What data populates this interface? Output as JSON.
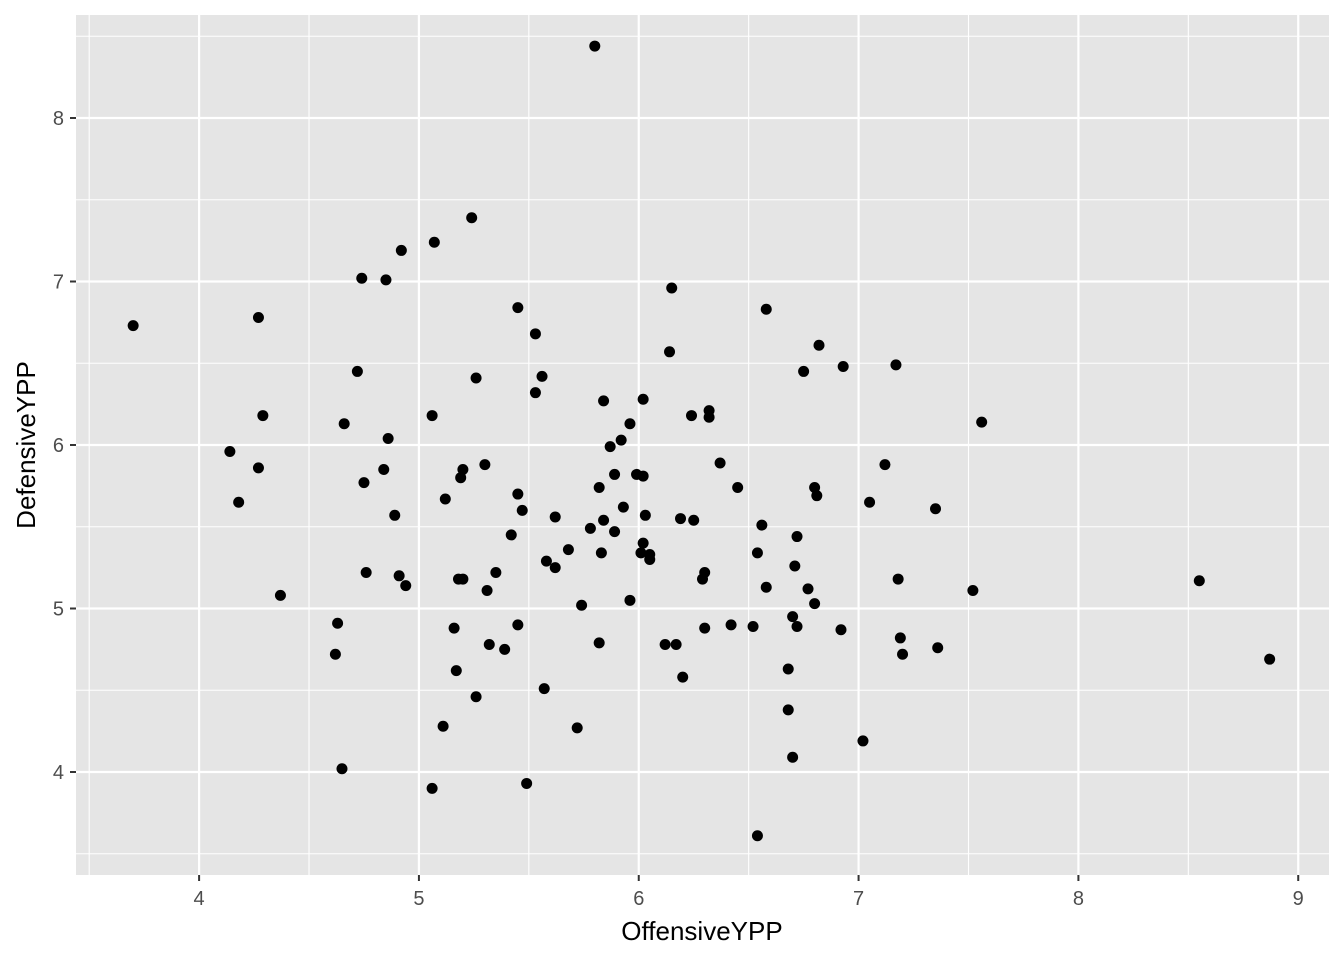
{
  "chart_data": {
    "type": "scatter",
    "title": "",
    "xlabel": "OffensiveYPP",
    "ylabel": "DefensiveYPP",
    "xlim": [
      3.44,
      9.14
    ],
    "ylim": [
      3.37,
      8.63
    ],
    "x_ticks": [
      4,
      5,
      6,
      7,
      8,
      9
    ],
    "y_ticks": [
      4,
      5,
      6,
      7,
      8
    ],
    "grid": true,
    "legend": "none",
    "colors": {
      "panel": "#e5e5e5",
      "grid": "#ffffff",
      "point": "#000000",
      "tick_text": "#4d4d4d"
    },
    "points": [
      [
        3.7,
        6.73
      ],
      [
        4.14,
        5.96
      ],
      [
        4.18,
        5.65
      ],
      [
        4.27,
        5.86
      ],
      [
        4.27,
        6.78
      ],
      [
        4.29,
        6.18
      ],
      [
        4.37,
        5.08
      ],
      [
        4.62,
        4.72
      ],
      [
        4.63,
        4.91
      ],
      [
        4.65,
        4.02
      ],
      [
        4.66,
        6.13
      ],
      [
        4.72,
        6.45
      ],
      [
        4.74,
        7.02
      ],
      [
        4.75,
        5.77
      ],
      [
        4.76,
        5.22
      ],
      [
        4.84,
        5.85
      ],
      [
        4.85,
        7.01
      ],
      [
        4.86,
        6.04
      ],
      [
        4.89,
        5.57
      ],
      [
        4.91,
        5.2
      ],
      [
        4.92,
        7.19
      ],
      [
        4.94,
        5.14
      ],
      [
        5.06,
        6.18
      ],
      [
        5.06,
        3.9
      ],
      [
        5.07,
        7.24
      ],
      [
        5.11,
        4.28
      ],
      [
        5.12,
        5.67
      ],
      [
        5.16,
        4.88
      ],
      [
        5.17,
        4.62
      ],
      [
        5.18,
        5.18
      ],
      [
        5.19,
        5.8
      ],
      [
        5.2,
        5.85
      ],
      [
        5.2,
        5.18
      ],
      [
        5.24,
        7.39
      ],
      [
        5.26,
        6.41
      ],
      [
        5.26,
        4.46
      ],
      [
        5.3,
        5.88
      ],
      [
        5.31,
        5.11
      ],
      [
        5.32,
        4.78
      ],
      [
        5.35,
        5.22
      ],
      [
        5.39,
        4.75
      ],
      [
        5.42,
        5.45
      ],
      [
        5.45,
        6.84
      ],
      [
        5.45,
        4.9
      ],
      [
        5.45,
        5.7
      ],
      [
        5.47,
        5.6
      ],
      [
        5.49,
        3.93
      ],
      [
        5.53,
        6.68
      ],
      [
        5.53,
        6.32
      ],
      [
        5.56,
        6.42
      ],
      [
        5.57,
        4.51
      ],
      [
        5.58,
        5.29
      ],
      [
        5.62,
        5.56
      ],
      [
        5.62,
        5.25
      ],
      [
        5.68,
        5.36
      ],
      [
        5.72,
        4.27
      ],
      [
        5.74,
        5.02
      ],
      [
        5.78,
        5.49
      ],
      [
        5.8,
        8.44
      ],
      [
        5.82,
        5.74
      ],
      [
        5.82,
        4.79
      ],
      [
        5.83,
        5.34
      ],
      [
        5.84,
        6.27
      ],
      [
        5.84,
        5.54
      ],
      [
        5.87,
        5.99
      ],
      [
        5.89,
        5.47
      ],
      [
        5.89,
        5.82
      ],
      [
        5.92,
        6.03
      ],
      [
        5.93,
        5.62
      ],
      [
        5.96,
        6.13
      ],
      [
        5.96,
        5.05
      ],
      [
        5.99,
        5.82
      ],
      [
        6.01,
        5.34
      ],
      [
        6.02,
        5.4
      ],
      [
        6.02,
        5.81
      ],
      [
        6.02,
        6.28
      ],
      [
        6.03,
        5.57
      ],
      [
        6.05,
        5.33
      ],
      [
        6.05,
        5.3
      ],
      [
        6.12,
        4.78
      ],
      [
        6.14,
        6.57
      ],
      [
        6.15,
        6.96
      ],
      [
        6.17,
        4.78
      ],
      [
        6.19,
        5.55
      ],
      [
        6.2,
        4.58
      ],
      [
        6.24,
        6.18
      ],
      [
        6.25,
        5.54
      ],
      [
        6.29,
        5.18
      ],
      [
        6.3,
        4.88
      ],
      [
        6.3,
        5.22
      ],
      [
        6.32,
        6.21
      ],
      [
        6.32,
        6.17
      ],
      [
        6.37,
        5.89
      ],
      [
        6.42,
        4.9
      ],
      [
        6.45,
        5.74
      ],
      [
        6.52,
        4.89
      ],
      [
        6.54,
        5.34
      ],
      [
        6.54,
        3.61
      ],
      [
        6.56,
        5.51
      ],
      [
        6.58,
        6.83
      ],
      [
        6.58,
        5.13
      ],
      [
        6.68,
        4.63
      ],
      [
        6.68,
        4.38
      ],
      [
        6.7,
        4.09
      ],
      [
        6.7,
        4.95
      ],
      [
        6.71,
        5.26
      ],
      [
        6.72,
        5.44
      ],
      [
        6.72,
        4.89
      ],
      [
        6.75,
        6.45
      ],
      [
        6.77,
        5.12
      ],
      [
        6.8,
        5.03
      ],
      [
        6.8,
        5.74
      ],
      [
        6.81,
        5.69
      ],
      [
        6.82,
        6.61
      ],
      [
        6.92,
        4.87
      ],
      [
        6.93,
        6.48
      ],
      [
        7.02,
        4.19
      ],
      [
        7.05,
        5.65
      ],
      [
        7.12,
        5.88
      ],
      [
        7.17,
        6.49
      ],
      [
        7.18,
        5.18
      ],
      [
        7.19,
        4.82
      ],
      [
        7.2,
        4.72
      ],
      [
        7.35,
        5.61
      ],
      [
        7.36,
        4.76
      ],
      [
        7.52,
        5.11
      ],
      [
        7.56,
        6.14
      ],
      [
        8.55,
        5.17
      ],
      [
        8.87,
        4.69
      ]
    ]
  }
}
